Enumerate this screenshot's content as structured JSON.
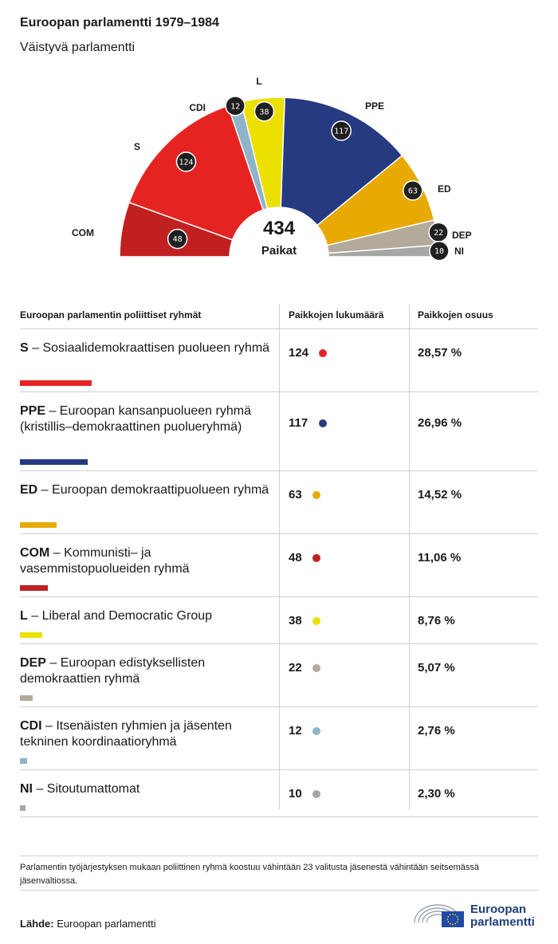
{
  "header": {
    "title": "Euroopan parlamentti 1979–1984",
    "subtitle": "Väistyvä parlamentti"
  },
  "chart_data": {
    "type": "pie",
    "total": {
      "value": "434",
      "label": "Paikat"
    },
    "series": [
      {
        "abbr": "COM",
        "seats": 48,
        "color": "#c0201f"
      },
      {
        "abbr": "S",
        "seats": 124,
        "color": "#e52421"
      },
      {
        "abbr": "CDI",
        "seats": 12,
        "color": "#8fb3c8"
      },
      {
        "abbr": "L",
        "seats": 38,
        "color": "#ece000"
      },
      {
        "abbr": "PPE",
        "seats": 117,
        "color": "#253a80"
      },
      {
        "abbr": "ED",
        "seats": 63,
        "color": "#e8a900"
      },
      {
        "abbr": "DEP",
        "seats": 22,
        "color": "#b3aa9c"
      },
      {
        "abbr": "NI",
        "seats": 10,
        "color": "#a6a6a6"
      }
    ]
  },
  "table": {
    "headers": [
      "Euroopan parlamentin poliittiset ryhmät",
      "Paikkojen lukumäärä",
      "Paikkojen osuus"
    ],
    "rows": [
      {
        "abbr": "S",
        "desc": " – Sosiaalidemokraattisen puolueen ryhmä",
        "seats": "124",
        "share": "28,57 %",
        "color": "#e52421",
        "fraction": 0.2857
      },
      {
        "abbr": "PPE",
        "desc": " – Euroopan kansanpuolueen ryhmä (kristillis–demokraattinen puolueryhmä)",
        "seats": "117",
        "share": "26,96 %",
        "color": "#253a80",
        "fraction": 0.2696
      },
      {
        "abbr": "ED",
        "desc": " – Euroopan demokraattipuolueen ryhmä",
        "seats": "63",
        "share": "14,52 %",
        "color": "#e8a900",
        "fraction": 0.1452
      },
      {
        "abbr": "COM",
        "desc": " – Kommunisti– ja vasemmistopuolueiden ryhmä",
        "seats": "48",
        "share": "11,06 %",
        "color": "#c0201f",
        "fraction": 0.1106
      },
      {
        "abbr": "L",
        "desc": " – Liberal and Democratic Group",
        "seats": "38",
        "share": "8,76 %",
        "color": "#ece000",
        "fraction": 0.0876
      },
      {
        "abbr": "DEP",
        "desc": " – Euroopan edistyksellisten demokraattien ryhmä",
        "seats": "22",
        "share": "5,07 %",
        "color": "#b3aa9c",
        "fraction": 0.0507
      },
      {
        "abbr": "CDI",
        "desc": " – Itsenäisten ryhmien ja jäsenten tekninen koordinaatioryhmä",
        "seats": "12",
        "share": "2,76 %",
        "color": "#8fb3c8",
        "fraction": 0.0276
      },
      {
        "abbr": "NI",
        "desc": " – Sitoutumattomat",
        "seats": "10",
        "share": "2,30 %",
        "color": "#a6a6a6",
        "fraction": 0.023
      }
    ]
  },
  "footnote": "Parlamentin työjärjestyksen mukaan poliittinen ryhmä koostuu vähintään 23 valitusta jäsenestä vähintään seitsemässä jäsenvaltiossa.",
  "source": {
    "label": "Lähde:",
    "value": " Euroopan parlamentti"
  },
  "logo": {
    "line1": "Euroopan",
    "line2": "parlamentti"
  }
}
